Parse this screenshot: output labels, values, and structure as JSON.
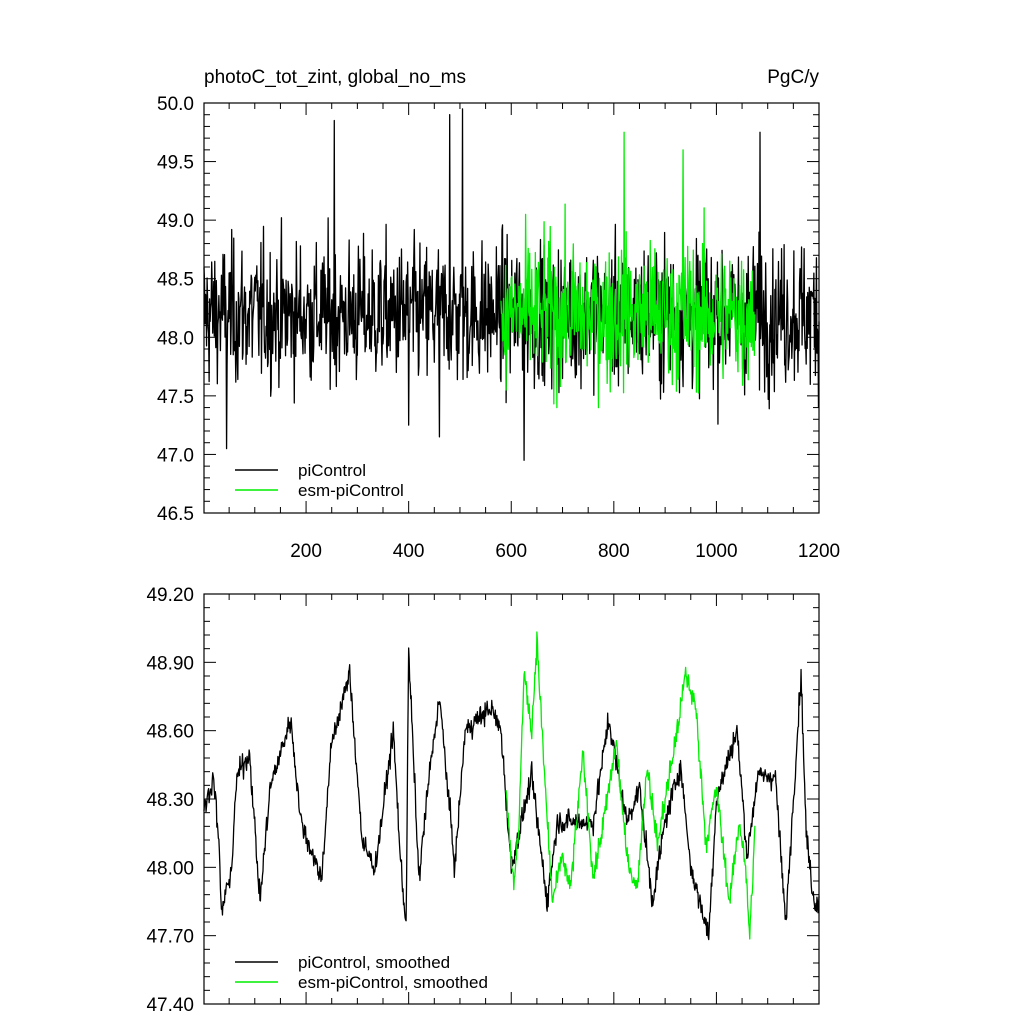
{
  "chart_data": [
    {
      "type": "line",
      "title": "photoC_tot_zint, global_no_ms",
      "units": "PgC/y",
      "xlim": [
        1,
        1200
      ],
      "ylim": [
        46.5,
        50.0
      ],
      "xticks": [
        200,
        400,
        600,
        800,
        1000,
        1200
      ],
      "xtick_labels": [
        "200",
        "400",
        "600",
        "800",
        "1000",
        "1200"
      ],
      "yticks": [
        46.5,
        47.0,
        47.5,
        48.0,
        48.5,
        49.0,
        49.5,
        50.0
      ],
      "ytick_labels": [
        "46.5",
        "47.0",
        "47.5",
        "48.0",
        "48.5",
        "49.0",
        "49.5",
        "50.0"
      ],
      "legend_position": "bottom-left",
      "series": [
        {
          "name": "piControl",
          "color": "#000000",
          "x_range": [
            1,
            1200
          ],
          "mean": 48.2,
          "approx_range": [
            46.95,
            49.95
          ],
          "notable_points": [
            [
              45,
              47.05
            ],
            [
              255,
              49.85
            ],
            [
              400,
              47.25
            ],
            [
              460,
              47.15
            ],
            [
              480,
              49.9
            ],
            [
              505,
              49.95
            ],
            [
              625,
              46.95
            ],
            [
              1085,
              49.75
            ]
          ]
        },
        {
          "name": "esm-piControl",
          "color": "#00ee00",
          "x_range": [
            580,
            1075
          ],
          "mean": 48.2,
          "approx_range": [
            47.25,
            49.75
          ],
          "notable_points": [
            [
              590,
              47.55
            ],
            [
              820,
              49.75
            ],
            [
              935,
              49.6
            ]
          ]
        }
      ]
    },
    {
      "type": "line",
      "xlim": [
        1,
        1200
      ],
      "ylim": [
        47.4,
        49.2
      ],
      "yticks": [
        47.4,
        47.7,
        48.0,
        48.3,
        48.6,
        48.9,
        49.2
      ],
      "ytick_labels": [
        "47.40",
        "47.70",
        "48.00",
        "48.30",
        "48.60",
        "48.90",
        "49.20"
      ],
      "legend_position": "bottom-left",
      "series": [
        {
          "name": "piControl, smoothed",
          "color": "#000000",
          "x_range": [
            1,
            1200
          ],
          "anchors": [
            [
              1,
              48.25
            ],
            [
              20,
              48.4
            ],
            [
              30,
              48.1
            ],
            [
              35,
              47.8
            ],
            [
              55,
              48.0
            ],
            [
              65,
              48.4
            ],
            [
              90,
              48.5
            ],
            [
              110,
              47.85
            ],
            [
              130,
              48.35
            ],
            [
              170,
              48.65
            ],
            [
              190,
              48.2
            ],
            [
              230,
              47.95
            ],
            [
              250,
              48.55
            ],
            [
              285,
              48.85
            ],
            [
              310,
              48.1
            ],
            [
              335,
              48.0
            ],
            [
              370,
              48.6
            ],
            [
              385,
              48.0
            ],
            [
              395,
              47.75
            ],
            [
              400,
              48.95
            ],
            [
              420,
              47.95
            ],
            [
              440,
              48.4
            ],
            [
              460,
              48.75
            ],
            [
              490,
              48.0
            ],
            [
              510,
              48.6
            ],
            [
              560,
              48.7
            ],
            [
              580,
              48.6
            ],
            [
              600,
              48.0
            ],
            [
              640,
              48.4
            ],
            [
              670,
              47.85
            ],
            [
              690,
              48.2
            ],
            [
              760,
              48.2
            ],
            [
              790,
              48.65
            ],
            [
              825,
              48.2
            ],
            [
              850,
              48.35
            ],
            [
              875,
              47.85
            ],
            [
              900,
              48.2
            ],
            [
              930,
              48.45
            ],
            [
              950,
              48.0
            ],
            [
              985,
              47.7
            ],
            [
              1000,
              48.3
            ],
            [
              1040,
              48.6
            ],
            [
              1060,
              48.05
            ],
            [
              1080,
              48.4
            ],
            [
              1115,
              48.4
            ],
            [
              1135,
              47.75
            ],
            [
              1150,
              48.3
            ],
            [
              1165,
              48.85
            ],
            [
              1175,
              48.15
            ],
            [
              1190,
              47.85
            ],
            [
              1200,
              47.85
            ]
          ]
        },
        {
          "name": "esm-piControl, smoothed",
          "color": "#00ee00",
          "x_range": [
            590,
            1075
          ],
          "anchors": [
            [
              590,
              48.35
            ],
            [
              605,
              47.9
            ],
            [
              615,
              48.2
            ],
            [
              625,
              48.85
            ],
            [
              640,
              48.6
            ],
            [
              650,
              49.0
            ],
            [
              665,
              48.4
            ],
            [
              680,
              47.85
            ],
            [
              700,
              48.05
            ],
            [
              715,
              47.9
            ],
            [
              740,
              48.5
            ],
            [
              760,
              47.95
            ],
            [
              780,
              48.2
            ],
            [
              805,
              48.55
            ],
            [
              825,
              48.05
            ],
            [
              845,
              47.9
            ],
            [
              865,
              48.45
            ],
            [
              885,
              48.1
            ],
            [
              900,
              48.3
            ],
            [
              920,
              48.55
            ],
            [
              940,
              48.85
            ],
            [
              960,
              48.7
            ],
            [
              980,
              48.1
            ],
            [
              1000,
              48.35
            ],
            [
              1025,
              47.85
            ],
            [
              1045,
              48.2
            ],
            [
              1055,
              48.05
            ],
            [
              1065,
              47.7
            ],
            [
              1075,
              48.15
            ]
          ]
        }
      ]
    }
  ]
}
